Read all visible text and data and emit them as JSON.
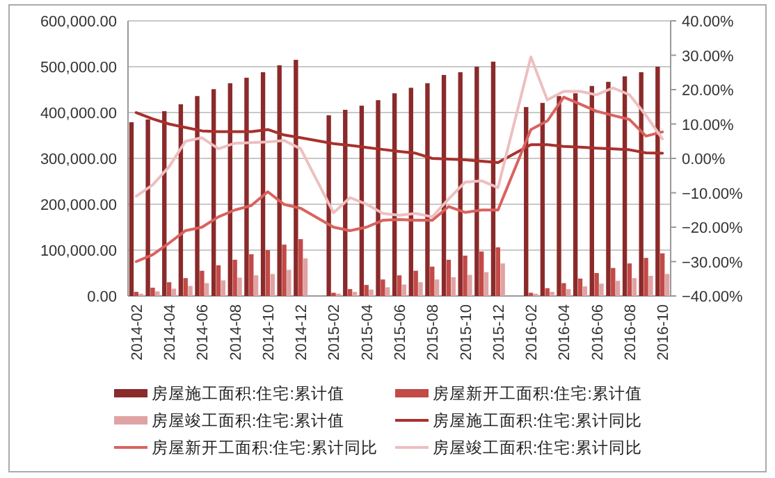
{
  "chart_data": {
    "type": "bar",
    "categories": [
      "2014-02",
      null,
      "2014-04",
      null,
      "2014-06",
      null,
      "2014-08",
      null,
      "2014-10",
      null,
      "2014-12",
      null,
      "2015-02",
      null,
      "2015-04",
      null,
      "2015-06",
      null,
      "2015-08",
      null,
      "2015-10",
      null,
      "2015-12",
      null,
      "2016-02",
      null,
      "2016-04",
      null,
      "2016-06",
      null,
      "2016-08",
      null,
      "2016-10"
    ],
    "series": [
      {
        "name": "房屋施工面积:住宅:累计值",
        "color": "#8b2a2a",
        "values": [
          379000,
          385000,
          403000,
          418000,
          436000,
          451000,
          464000,
          476000,
          488000,
          503000,
          515000,
          null,
          394000,
          406000,
          415000,
          427000,
          442000,
          454000,
          464000,
          482000,
          488000,
          500000,
          511000,
          null,
          412000,
          421000,
          436000,
          442000,
          458000,
          467000,
          479000,
          488000,
          500000
        ]
      },
      {
        "name": "房屋新开工面积:住宅:累计值",
        "color": "#c24a47",
        "values": [
          9000,
          18000,
          30000,
          39000,
          55000,
          67000,
          79000,
          91000,
          100000,
          112000,
          124000,
          null,
          7000,
          15000,
          24000,
          36000,
          45000,
          55000,
          64000,
          79000,
          88000,
          97000,
          106000,
          null,
          7000,
          17000,
          28000,
          38000,
          50000,
          61000,
          71000,
          83000,
          93000
        ]
      },
      {
        "name": "房屋竣工面积:住宅:累计值",
        "color": "#e0a3a3",
        "values": [
          5000,
          10000,
          16000,
          22000,
          28000,
          34000,
          40000,
          45000,
          48000,
          57000,
          82000,
          null,
          5000,
          9000,
          14000,
          19000,
          25000,
          30000,
          36000,
          41000,
          46000,
          52000,
          71000,
          null,
          5000,
          9000,
          15000,
          21000,
          27000,
          33000,
          39000,
          44000,
          48000
        ]
      },
      {
        "name": "房屋施工面积:住宅:累计同比",
        "type": "line",
        "axis": "y2",
        "color": "#a8302d",
        "values": [
          13.3,
          11.5,
          10,
          9,
          8,
          7.8,
          7.8,
          7.8,
          8.4,
          6.8,
          6,
          null,
          4.3,
          3.8,
          3.2,
          2.6,
          2,
          1.5,
          0,
          -0.2,
          -0.4,
          -0.8,
          -1.2,
          null,
          4,
          4,
          3.5,
          3.3,
          3,
          2.8,
          2.5,
          1.6,
          1.5
        ]
      },
      {
        "name": "房屋新开工面积:住宅:累计同比",
        "type": "line",
        "axis": "y2",
        "color": "#d9625e",
        "values": [
          -30,
          -28,
          -24.6,
          -21,
          -20,
          -17,
          -15,
          -13.7,
          -9.7,
          -13.4,
          -14.5,
          null,
          -20,
          -21,
          -20,
          -18,
          -17.8,
          -18,
          -18,
          -14,
          -15.7,
          -15,
          -15,
          null,
          8.4,
          10.9,
          17.8,
          15.8,
          13.7,
          12.5,
          11.3,
          6.5,
          7.7
        ]
      },
      {
        "name": "房屋竣工面积:住宅:累计同比",
        "type": "line",
        "axis": "y2",
        "color": "#eebfbf",
        "values": [
          -11,
          -7.7,
          -2.4,
          5,
          6,
          2.8,
          4.4,
          4.6,
          4.8,
          5.2,
          2.8,
          null,
          -15.8,
          -11.4,
          -13.3,
          -16,
          -16.5,
          -16,
          -17,
          -11.8,
          -6.9,
          -6.5,
          -8.5,
          null,
          29.5,
          17,
          19.5,
          19.5,
          18.5,
          20.5,
          18.5,
          12.5,
          5.7
        ]
      }
    ],
    "ylim": [
      0,
      600000
    ],
    "yticks": [
      {
        "value": 0,
        "label": "0.00"
      },
      {
        "value": 100000,
        "label": "100,000.00"
      },
      {
        "value": 200000,
        "label": "200,000.00"
      },
      {
        "value": 300000,
        "label": "300,000.00"
      },
      {
        "value": 400000,
        "label": "400,000.00"
      },
      {
        "value": 500000,
        "label": "500,000.00"
      },
      {
        "value": 600000,
        "label": "600,000.00"
      }
    ],
    "y2lim": [
      -40,
      40
    ],
    "y2ticks": [
      {
        "value": -40,
        "label": "−40.00%"
      },
      {
        "value": -30,
        "label": "−30.00%"
      },
      {
        "value": -20,
        "label": "−20.00%"
      },
      {
        "value": -10,
        "label": "−10.00%"
      },
      {
        "value": 0,
        "label": "0.00%"
      },
      {
        "value": 10,
        "label": "10.00%"
      },
      {
        "value": 20,
        "label": "20.00%"
      },
      {
        "value": 30,
        "label": "30.00%"
      },
      {
        "value": 40,
        "label": "40.00%"
      }
    ],
    "grid": "y",
    "legend": "bottom",
    "line_style": "solid",
    "marker": "none"
  }
}
